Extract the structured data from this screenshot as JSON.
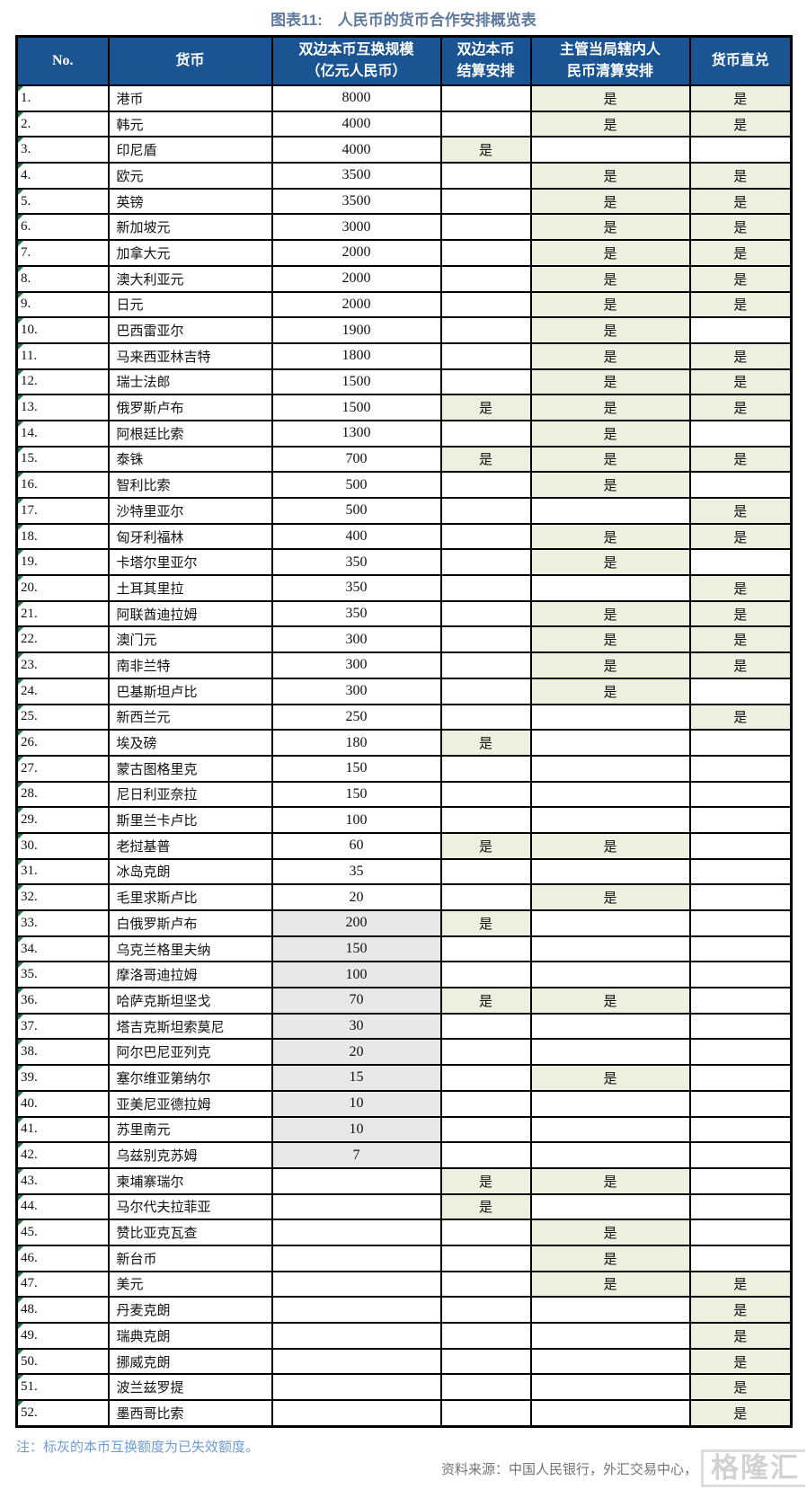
{
  "title": "图表11:　人民币的货币合作安排概览表",
  "note": "注：标灰的本币互换额度为已失效额度。",
  "source": "资料来源：中国人民银行，外汇交易中心，",
  "watermark": "格隆汇",
  "colors": {
    "header_bg": "#1A5492",
    "header_text": "#FFFFFF",
    "yes_cell_bg": "#EBF1DE",
    "expired_cell_bg": "#E8E8E8",
    "border": "#000000",
    "title_text": "#5E7A9C",
    "note_text": "#6D9BD6",
    "source_text": "#737373",
    "comment_marker": "#1E7A3C"
  },
  "chart_data": {
    "type": "table",
    "title": "图表11: 人民币的货币合作安排概览表",
    "header": {
      "no": "No.",
      "currency": "货币",
      "swap": "双边本币互换规模\n（亿元人民币）",
      "settlement": "双边本币\n结算安排",
      "clearing": "主管当局辖内人\n民币清算安排",
      "direct": "货币直兑"
    },
    "yes_label": "是",
    "rows": [
      {
        "no": "1.",
        "currency": "港币",
        "swap": "8000",
        "expired": false,
        "settlement": false,
        "clearing": true,
        "direct": true
      },
      {
        "no": "2.",
        "currency": "韩元",
        "swap": "4000",
        "expired": false,
        "settlement": false,
        "clearing": true,
        "direct": true
      },
      {
        "no": "3.",
        "currency": "印尼盾",
        "swap": "4000",
        "expired": false,
        "settlement": true,
        "clearing": false,
        "direct": false
      },
      {
        "no": "4.",
        "currency": "欧元",
        "swap": "3500",
        "expired": false,
        "settlement": false,
        "clearing": true,
        "direct": true
      },
      {
        "no": "5.",
        "currency": "英镑",
        "swap": "3500",
        "expired": false,
        "settlement": false,
        "clearing": true,
        "direct": true
      },
      {
        "no": "6.",
        "currency": "新加坡元",
        "swap": "3000",
        "expired": false,
        "settlement": false,
        "clearing": true,
        "direct": true
      },
      {
        "no": "7.",
        "currency": "加拿大元",
        "swap": "2000",
        "expired": false,
        "settlement": false,
        "clearing": true,
        "direct": true
      },
      {
        "no": "8.",
        "currency": "澳大利亚元",
        "swap": "2000",
        "expired": false,
        "settlement": false,
        "clearing": true,
        "direct": true
      },
      {
        "no": "9.",
        "currency": "日元",
        "swap": "2000",
        "expired": false,
        "settlement": false,
        "clearing": true,
        "direct": true
      },
      {
        "no": "10.",
        "currency": "巴西雷亚尔",
        "swap": "1900",
        "expired": false,
        "settlement": false,
        "clearing": true,
        "direct": false
      },
      {
        "no": "11.",
        "currency": "马来西亚林吉特",
        "swap": "1800",
        "expired": false,
        "settlement": false,
        "clearing": true,
        "direct": true
      },
      {
        "no": "12.",
        "currency": "瑞士法郎",
        "swap": "1500",
        "expired": false,
        "settlement": false,
        "clearing": true,
        "direct": true
      },
      {
        "no": "13.",
        "currency": "俄罗斯卢布",
        "swap": "1500",
        "expired": false,
        "settlement": true,
        "clearing": true,
        "direct": true
      },
      {
        "no": "14.",
        "currency": "阿根廷比索",
        "swap": "1300",
        "expired": false,
        "settlement": false,
        "clearing": true,
        "direct": false
      },
      {
        "no": "15.",
        "currency": "泰铢",
        "swap": "700",
        "expired": false,
        "settlement": true,
        "clearing": true,
        "direct": true
      },
      {
        "no": "16.",
        "currency": "智利比索",
        "swap": "500",
        "expired": false,
        "settlement": false,
        "clearing": true,
        "direct": false
      },
      {
        "no": "17.",
        "currency": "沙特里亚尔",
        "swap": "500",
        "expired": false,
        "settlement": false,
        "clearing": false,
        "direct": true
      },
      {
        "no": "18.",
        "currency": "匈牙利福林",
        "swap": "400",
        "expired": false,
        "settlement": false,
        "clearing": true,
        "direct": true
      },
      {
        "no": "19.",
        "currency": "卡塔尔里亚尔",
        "swap": "350",
        "expired": false,
        "settlement": false,
        "clearing": true,
        "direct": false
      },
      {
        "no": "20.",
        "currency": "土耳其里拉",
        "swap": "350",
        "expired": false,
        "settlement": false,
        "clearing": false,
        "direct": true
      },
      {
        "no": "21.",
        "currency": "阿联酋迪拉姆",
        "swap": "350",
        "expired": false,
        "settlement": false,
        "clearing": true,
        "direct": true
      },
      {
        "no": "22.",
        "currency": "澳门元",
        "swap": "300",
        "expired": false,
        "settlement": false,
        "clearing": true,
        "direct": true
      },
      {
        "no": "23.",
        "currency": "南非兰特",
        "swap": "300",
        "expired": false,
        "settlement": false,
        "clearing": true,
        "direct": true
      },
      {
        "no": "24.",
        "currency": "巴基斯坦卢比",
        "swap": "300",
        "expired": false,
        "settlement": false,
        "clearing": true,
        "direct": false
      },
      {
        "no": "25.",
        "currency": "新西兰元",
        "swap": "250",
        "expired": false,
        "settlement": false,
        "clearing": false,
        "direct": true
      },
      {
        "no": "26.",
        "currency": "埃及磅",
        "swap": "180",
        "expired": false,
        "settlement": true,
        "clearing": false,
        "direct": false
      },
      {
        "no": "27.",
        "currency": "蒙古图格里克",
        "swap": "150",
        "expired": false,
        "settlement": false,
        "clearing": false,
        "direct": false
      },
      {
        "no": "28.",
        "currency": "尼日利亚奈拉",
        "swap": "150",
        "expired": false,
        "settlement": false,
        "clearing": false,
        "direct": false
      },
      {
        "no": "29.",
        "currency": "斯里兰卡卢比",
        "swap": "100",
        "expired": false,
        "settlement": false,
        "clearing": false,
        "direct": false
      },
      {
        "no": "30.",
        "currency": "老挝基普",
        "swap": "60",
        "expired": false,
        "settlement": true,
        "clearing": true,
        "direct": false
      },
      {
        "no": "31.",
        "currency": "冰岛克朗",
        "swap": "35",
        "expired": false,
        "settlement": false,
        "clearing": false,
        "direct": false
      },
      {
        "no": "32.",
        "currency": "毛里求斯卢比",
        "swap": "20",
        "expired": false,
        "settlement": false,
        "clearing": true,
        "direct": false
      },
      {
        "no": "33.",
        "currency": "白俄罗斯卢布",
        "swap": "200",
        "expired": true,
        "settlement": true,
        "clearing": false,
        "direct": false
      },
      {
        "no": "34.",
        "currency": "乌克兰格里夫纳",
        "swap": "150",
        "expired": true,
        "settlement": false,
        "clearing": false,
        "direct": false
      },
      {
        "no": "35.",
        "currency": "摩洛哥迪拉姆",
        "swap": "100",
        "expired": true,
        "settlement": false,
        "clearing": false,
        "direct": false
      },
      {
        "no": "36.",
        "currency": "哈萨克斯坦坚戈",
        "swap": "70",
        "expired": true,
        "settlement": true,
        "clearing": true,
        "direct": false
      },
      {
        "no": "37.",
        "currency": "塔吉克斯坦索莫尼",
        "swap": "30",
        "expired": true,
        "settlement": false,
        "clearing": false,
        "direct": false
      },
      {
        "no": "38.",
        "currency": "阿尔巴尼亚列克",
        "swap": "20",
        "expired": true,
        "settlement": false,
        "clearing": false,
        "direct": false
      },
      {
        "no": "39.",
        "currency": "塞尔维亚第纳尔",
        "swap": "15",
        "expired": true,
        "settlement": false,
        "clearing": true,
        "direct": false
      },
      {
        "no": "40.",
        "currency": "亚美尼亚德拉姆",
        "swap": "10",
        "expired": true,
        "settlement": false,
        "clearing": false,
        "direct": false
      },
      {
        "no": "41.",
        "currency": "苏里南元",
        "swap": "10",
        "expired": true,
        "settlement": false,
        "clearing": false,
        "direct": false
      },
      {
        "no": "42.",
        "currency": "乌兹别克苏姆",
        "swap": "7",
        "expired": true,
        "settlement": false,
        "clearing": false,
        "direct": false
      },
      {
        "no": "43.",
        "currency": "柬埔寨瑞尔",
        "swap": "",
        "expired": false,
        "settlement": true,
        "clearing": true,
        "direct": false
      },
      {
        "no": "44.",
        "currency": "马尔代夫拉菲亚",
        "swap": "",
        "expired": false,
        "settlement": true,
        "clearing": false,
        "direct": false
      },
      {
        "no": "45.",
        "currency": "赞比亚克瓦查",
        "swap": "",
        "expired": false,
        "settlement": false,
        "clearing": true,
        "direct": false
      },
      {
        "no": "46.",
        "currency": "新台币",
        "swap": "",
        "expired": false,
        "settlement": false,
        "clearing": true,
        "direct": false
      },
      {
        "no": "47.",
        "currency": "美元",
        "swap": "",
        "expired": false,
        "settlement": false,
        "clearing": true,
        "direct": true
      },
      {
        "no": "48.",
        "currency": "丹麦克朗",
        "swap": "",
        "expired": false,
        "settlement": false,
        "clearing": false,
        "direct": true
      },
      {
        "no": "49.",
        "currency": "瑞典克朗",
        "swap": "",
        "expired": false,
        "settlement": false,
        "clearing": false,
        "direct": true
      },
      {
        "no": "50.",
        "currency": "挪威克朗",
        "swap": "",
        "expired": false,
        "settlement": false,
        "clearing": false,
        "direct": true
      },
      {
        "no": "51.",
        "currency": "波兰兹罗提",
        "swap": "",
        "expired": false,
        "settlement": false,
        "clearing": false,
        "direct": true
      },
      {
        "no": "52.",
        "currency": "墨西哥比索",
        "swap": "",
        "expired": false,
        "settlement": false,
        "clearing": false,
        "direct": true
      }
    ]
  }
}
